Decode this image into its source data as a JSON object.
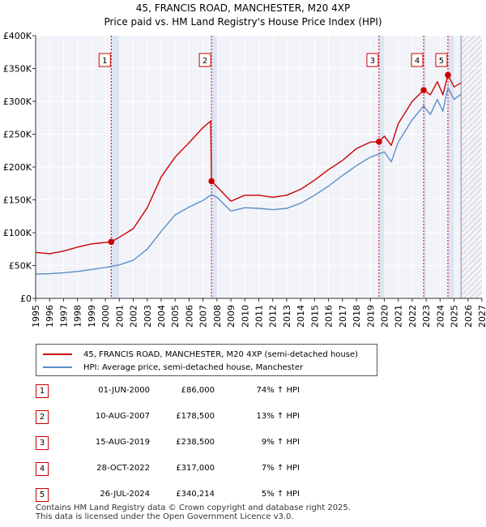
{
  "chart_data": {
    "type": "line",
    "title": "45, FRANCIS ROAD, MANCHESTER, M20 4XP",
    "subtitle": "Price paid vs. HM Land Registry's House Price Index (HPI)",
    "xlim": [
      1995,
      2027
    ],
    "ylim": [
      0,
      400000
    ],
    "x_ticks": [
      "1995",
      "1996",
      "1997",
      "1998",
      "1999",
      "2000",
      "2001",
      "2002",
      "2003",
      "2004",
      "2005",
      "2006",
      "2007",
      "2008",
      "2009",
      "2010",
      "2011",
      "2012",
      "2013",
      "2014",
      "2015",
      "2016",
      "2017",
      "2018",
      "2019",
      "2020",
      "2021",
      "2022",
      "2023",
      "2024",
      "2025",
      "2026",
      "2027"
    ],
    "y_ticks": [
      "£0",
      "£50K",
      "£100K",
      "£150K",
      "£200K",
      "£250K",
      "£300K",
      "£350K",
      "£400K"
    ],
    "y_tick_values": [
      0,
      50000,
      100000,
      150000,
      200000,
      250000,
      300000,
      350000,
      400000
    ],
    "future_hatch_from": 2025.5,
    "series": [
      {
        "name": "45, FRANCIS ROAD, MANCHESTER, M20 4XP (semi-detached house)",
        "color": "#cc0000",
        "points": [
          [
            1995,
            70000
          ],
          [
            1996,
            68000
          ],
          [
            1997,
            72000
          ],
          [
            1998,
            78000
          ],
          [
            1999,
            83000
          ],
          [
            2000.42,
            86000
          ],
          [
            2001,
            93000
          ],
          [
            2002,
            106000
          ],
          [
            2003,
            138000
          ],
          [
            2004,
            185000
          ],
          [
            2005,
            215000
          ],
          [
            2006,
            237000
          ],
          [
            2007,
            260000
          ],
          [
            2007.55,
            270000
          ],
          [
            2007.61,
            178500
          ],
          [
            2008,
            170000
          ],
          [
            2009,
            148000
          ],
          [
            2010,
            157000
          ],
          [
            2011,
            157000
          ],
          [
            2012,
            154000
          ],
          [
            2013,
            157000
          ],
          [
            2014,
            166000
          ],
          [
            2015,
            180000
          ],
          [
            2016,
            196000
          ],
          [
            2017,
            210000
          ],
          [
            2018,
            228000
          ],
          [
            2019,
            238000
          ],
          [
            2019.62,
            238500
          ],
          [
            2020,
            247000
          ],
          [
            2020.5,
            233000
          ],
          [
            2021,
            266000
          ],
          [
            2022,
            300000
          ],
          [
            2022.82,
            317000
          ],
          [
            2023.3,
            310000
          ],
          [
            2023.8,
            330000
          ],
          [
            2024.2,
            310000
          ],
          [
            2024.56,
            340214
          ],
          [
            2025,
            322000
          ],
          [
            2025.5,
            328000
          ]
        ]
      },
      {
        "name": "HPI: Average price, semi-detached house, Manchester",
        "color": "#5b8ec9",
        "points": [
          [
            1995,
            37000
          ],
          [
            1996,
            37500
          ],
          [
            1997,
            39000
          ],
          [
            1998,
            41000
          ],
          [
            1999,
            44000
          ],
          [
            2000,
            47000
          ],
          [
            2001,
            51000
          ],
          [
            2002,
            58000
          ],
          [
            2003,
            75000
          ],
          [
            2004,
            102000
          ],
          [
            2005,
            127000
          ],
          [
            2006,
            139000
          ],
          [
            2007,
            149000
          ],
          [
            2007.6,
            158000
          ],
          [
            2008,
            154000
          ],
          [
            2009,
            133000
          ],
          [
            2010,
            138000
          ],
          [
            2011,
            137000
          ],
          [
            2012,
            135000
          ],
          [
            2013,
            137000
          ],
          [
            2014,
            145000
          ],
          [
            2015,
            157000
          ],
          [
            2016,
            171000
          ],
          [
            2017,
            187000
          ],
          [
            2018,
            202000
          ],
          [
            2019,
            215000
          ],
          [
            2020,
            223000
          ],
          [
            2020.5,
            208000
          ],
          [
            2021,
            238000
          ],
          [
            2022,
            272000
          ],
          [
            2022.82,
            293000
          ],
          [
            2023.3,
            280000
          ],
          [
            2023.8,
            303000
          ],
          [
            2024.2,
            285000
          ],
          [
            2024.56,
            321000
          ],
          [
            2025,
            303000
          ],
          [
            2025.5,
            311000
          ]
        ]
      }
    ],
    "sales": [
      {
        "label": "1",
        "x": 2000.42,
        "y": 86000
      },
      {
        "label": "2",
        "x": 2007.61,
        "y": 178500
      },
      {
        "label": "3",
        "x": 2019.62,
        "y": 238500
      },
      {
        "label": "4",
        "x": 2022.82,
        "y": 317000
      },
      {
        "label": "5",
        "x": 2024.56,
        "y": 340214
      }
    ]
  },
  "legend": {
    "property": "45, FRANCIS ROAD, MANCHESTER, M20 4XP (semi-detached house)",
    "hpi": "HPI: Average price, semi-detached house, Manchester"
  },
  "sales_table": [
    {
      "num": "1",
      "date": "01-JUN-2000",
      "price": "£86,000",
      "hpi": "74% ↑ HPI"
    },
    {
      "num": "2",
      "date": "10-AUG-2007",
      "price": "£178,500",
      "hpi": "13% ↑ HPI"
    },
    {
      "num": "3",
      "date": "15-AUG-2019",
      "price": "£238,500",
      "hpi": "9% ↑ HPI"
    },
    {
      "num": "4",
      "date": "28-OCT-2022",
      "price": "£317,000",
      "hpi": "7% ↑ HPI"
    },
    {
      "num": "5",
      "date": "26-JUL-2024",
      "price": "£340,214",
      "hpi": "5% ↑ HPI"
    }
  ],
  "footer": {
    "line1": "Contains HM Land Registry data © Crown copyright and database right 2025.",
    "line2": "This data is licensed under the Open Government Licence v3.0."
  }
}
